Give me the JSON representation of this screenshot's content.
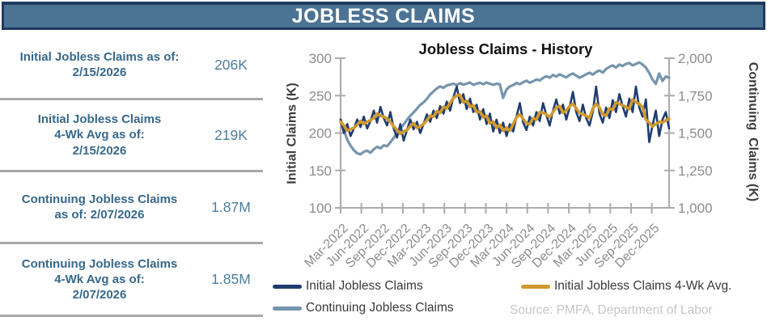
{
  "header": {
    "title": "JOBLESS CLAIMS"
  },
  "stats": {
    "rows": [
      {
        "label": "Initial Jobless Claims as of:\n2/15/2026",
        "value": "206K"
      },
      {
        "label": "Initial Jobless Claims\n4-Wk Avg as of:\n2/15/2026",
        "value": "219K"
      },
      {
        "label": "Continuing Jobless Claims\nas of: 2/07/2026",
        "value": "1.87M"
      },
      {
        "label": "Continuing Jobless Claims\n4-Wk Avg as of:\n2/07/2026",
        "value": "1.85M"
      }
    ]
  },
  "chart_data": {
    "type": "line",
    "title": "Jobless Claims - History",
    "x_range_note": "weekly data Mar-2022 through mid-Feb-2026, sampled to 100 points",
    "x_tick_labels": [
      "Mar-2022",
      "Jun-2022",
      "Sep-2022",
      "Dec-2022",
      "Mar-2023",
      "Jun-2023",
      "Sep-2023",
      "Dec-2023",
      "Mar-2024",
      "Jun-2024",
      "Sep-2024",
      "Dec-2024",
      "Mar-2025",
      "Jun-2025",
      "Sep-2025",
      "Dec-2025"
    ],
    "tick_interval_months": 3,
    "months_total": 47.5,
    "left_axis": {
      "label": "Initial Claims (K)",
      "min": 100,
      "max": 300,
      "ticks": [
        "300",
        "250",
        "200",
        "150",
        "100"
      ]
    },
    "right_axis": {
      "label": "Continuing  Claims (K)",
      "min": 1000,
      "max": 2000,
      "ticks": [
        "2,000",
        "1,750",
        "1,500",
        "1,250",
        "1,000"
      ]
    },
    "legend_position": "bottom",
    "grid": false,
    "series": [
      {
        "name": "Initial Jobless Claims",
        "axis": "left",
        "color": "#1F3C6E",
        "width": 2.6,
        "values": [
          218,
          200,
          212,
          196,
          206,
          218,
          208,
          222,
          206,
          216,
          230,
          214,
          235,
          220,
          210,
          228,
          206,
          194,
          212,
          190,
          204,
          218,
          205,
          215,
          200,
          212,
          225,
          215,
          230,
          220,
          236,
          226,
          242,
          230,
          248,
          262,
          240,
          252,
          232,
          246,
          228,
          238,
          218,
          232,
          212,
          226,
          202,
          218,
          200,
          214,
          196,
          212,
          202,
          222,
          240,
          214,
          204,
          222,
          210,
          228,
          216,
          240,
          224,
          210,
          230,
          245,
          226,
          238,
          218,
          234,
          255,
          228,
          216,
          238,
          220,
          210,
          228,
          262,
          226,
          214,
          234,
          220,
          244,
          228,
          252,
          236,
          222,
          246,
          228,
          262,
          234,
          222,
          245,
          188,
          210,
          230,
          196,
          218,
          228,
          206
        ]
      },
      {
        "name": "Initial Jobless Claims 4-Wk Avg.",
        "axis": "left",
        "color": "#D0992F",
        "width": 3.6,
        "values": [
          215,
          210,
          203,
          205,
          207,
          211,
          216,
          212,
          215,
          217,
          220,
          226,
          223,
          222,
          219,
          215,
          209,
          204,
          199,
          202,
          204,
          209,
          213,
          207,
          209,
          212,
          217,
          223,
          222,
          229,
          227,
          235,
          233,
          240,
          247,
          250,
          251,
          241,
          243,
          235,
          237,
          228,
          229,
          221,
          223,
          213,
          215,
          207,
          211,
          203,
          207,
          203,
          212,
          221,
          225,
          219,
          213,
          212,
          220,
          218,
          228,
          227,
          225,
          221,
          228,
          234,
          236,
          227,
          230,
          236,
          239,
          233,
          227,
          225,
          223,
          220,
          233,
          239,
          234,
          225,
          223,
          233,
          231,
          241,
          239,
          237,
          235,
          232,
          245,
          241,
          239,
          234,
          218,
          214,
          209,
          212,
          215,
          214,
          217,
          219
        ]
      },
      {
        "name": "Continuing Jobless Claims",
        "axis": "right",
        "color": "#7595AC",
        "width": 3.2,
        "values": [
          1590,
          1520,
          1455,
          1415,
          1385,
          1365,
          1358,
          1375,
          1382,
          1368,
          1392,
          1408,
          1398,
          1418,
          1412,
          1438,
          1468,
          1498,
          1528,
          1558,
          1588,
          1615,
          1638,
          1662,
          1688,
          1705,
          1728,
          1758,
          1778,
          1798,
          1812,
          1802,
          1818,
          1824,
          1830,
          1820,
          1833,
          1824,
          1830,
          1838,
          1822,
          1830,
          1836,
          1826,
          1838,
          1830,
          1822,
          1830,
          1826,
          1735,
          1792,
          1812,
          1820,
          1835,
          1826,
          1840,
          1850,
          1836,
          1846,
          1858,
          1852,
          1868,
          1880,
          1870,
          1888,
          1878,
          1892,
          1882,
          1872,
          1888,
          1898,
          1884,
          1870,
          1880,
          1893,
          1903,
          1890,
          1908,
          1918,
          1904,
          1928,
          1942,
          1952,
          1938,
          1958,
          1948,
          1962,
          1968,
          1952,
          1962,
          1972,
          1958,
          1938,
          1902,
          1858,
          1828,
          1898,
          1848,
          1878,
          1870
        ]
      }
    ]
  },
  "legend": {
    "items": [
      {
        "label": "Initial Jobless Claims",
        "color": "#1F3C6E"
      },
      {
        "label": "Initial Jobless Claims 4-Wk Avg.",
        "color": "#D0992F"
      },
      {
        "label": "Continuing Jobless Claims",
        "color": "#7595AC"
      }
    ]
  },
  "source": "Source: PMFA, Department of Labor",
  "colors": {
    "header_fill": "#4C7394",
    "header_border": "#1D3B5F",
    "stat_label": "#37688A",
    "stat_value": "#4D7D9B",
    "divider": "#A8A8A8",
    "axis_line": "#ABABAB",
    "tick_text": "#8C8C8C",
    "axis_title": "#3D3D3D",
    "source_text": "#C6C6C6"
  }
}
